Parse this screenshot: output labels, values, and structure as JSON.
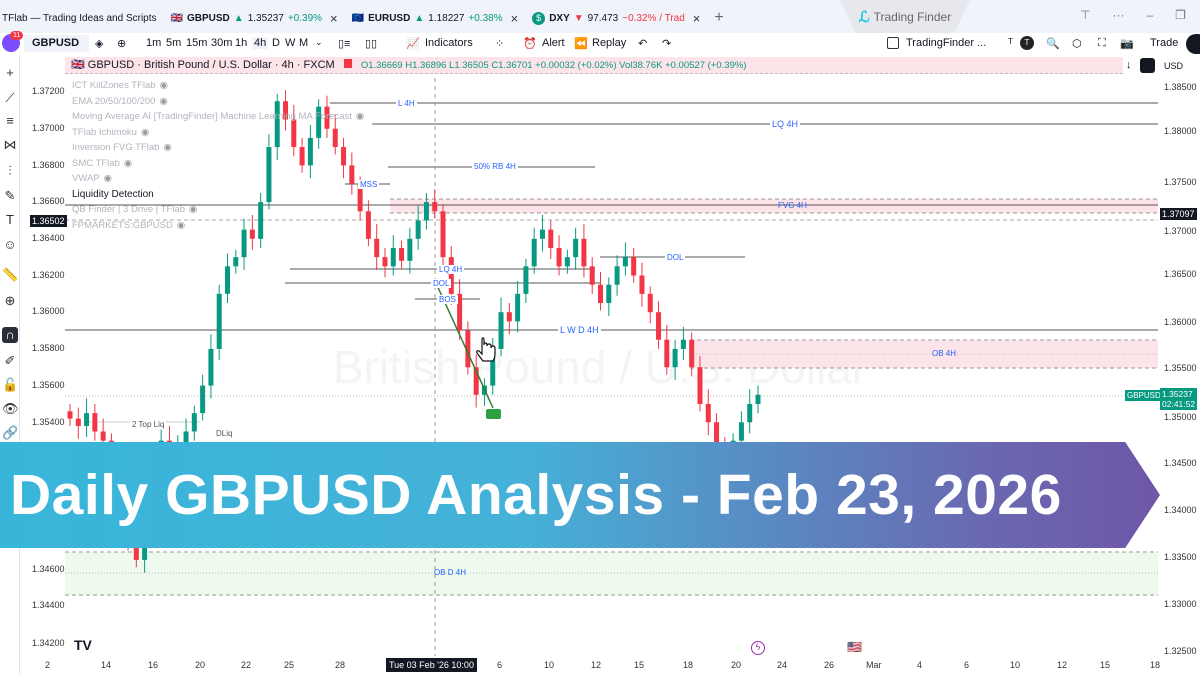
{
  "tabs": [
    {
      "title": "TFlab — Trading Ideas and Scripts"
    },
    {
      "symbol": "GBPUSD",
      "dir": "▲",
      "price": "1.35237",
      "change": "+0.39%"
    },
    {
      "symbol": "EURUSD",
      "dir": "▲",
      "price": "1.18227",
      "change": "+0.38%"
    },
    {
      "symbol": "DXY",
      "dir": "▼",
      "price": "97.473",
      "change": "−0.32% / Trad"
    }
  ],
  "brand": "Trading Finder",
  "toolbar": {
    "notif": "11",
    "symbol": "GBPUSD",
    "intervals": [
      "1m",
      "5m",
      "15m",
      "30m",
      "1h",
      "4h",
      "D",
      "W",
      "M"
    ],
    "active_interval": "4h",
    "indicators": "Indicators",
    "alert": "Alert",
    "replay": "Replay",
    "layout": "TradingFinder ...",
    "trade": "Trade",
    "t_label": "T",
    "avatar": "T"
  },
  "legend": {
    "title": "GBPUSD · British Pound / U.S. Dollar · 4h · FXCM",
    "ohlc": "O1.36669 H1.36896 L1.36505 C1.36701 +0.00032 (+0.02%) Vol38.76K +0.00527 (+0.39%)",
    "currency": "USD"
  },
  "indicators": [
    "ICT KillZones TFlab",
    "EMA 20/50/100/200",
    "Moving Average AI [TradingFinder] Machine Learning MA Forecast",
    "TFlab Ichimoku",
    "Inversion FVG TFlab",
    "SMC TFlab",
    "VWAP",
    "Liquidity Detection",
    "QB Finder | 3 Drive | TFlab",
    "FPMARKETS:GBPUSD"
  ],
  "left_axis": [
    "1.37200",
    "1.37000",
    "1.36800",
    "1.36600",
    "1.36400",
    "1.36200",
    "1.36000",
    "1.35800",
    "1.35600",
    "1.35400",
    "1.34600",
    "1.34400",
    "1.34200"
  ],
  "left_crosshair_price": "1.36502",
  "right_axis": [
    "1.38500",
    "1.38000",
    "1.37500",
    "1.37000",
    "1.36500",
    "1.36000",
    "1.35500",
    "1.35000",
    "1.34500",
    "1.34000",
    "1.33500",
    "1.33000",
    "1.32500"
  ],
  "right_marker_price": "1.37097",
  "current": {
    "symbol": "GBPUSD",
    "price": "1.35237",
    "countdown": "02:41:52"
  },
  "annotations": {
    "l4h": "L 4H",
    "lq4h": "LQ 4H",
    "rb": "50% RB 4H",
    "mss": "MSS",
    "fvg": "FVG 4H",
    "lq4h2": "LQ 4H",
    "dol": "DOL",
    "bos": "BOS",
    "dol2": "DOL",
    "lwd": "L W D 4H",
    "ob4h": "OB 4H",
    "top_liq": "2 Top Liq",
    "dliq": "DLiq",
    "obd": "OB D 4H"
  },
  "watermark": "British Pound / U.S. Dollar",
  "time_axis": [
    "2",
    "14",
    "16",
    "20",
    "22",
    "25",
    "28",
    "6",
    "10",
    "12",
    "15",
    "18",
    "20",
    "24",
    "26",
    "Mar",
    "4",
    "6",
    "10",
    "12",
    "15",
    "18"
  ],
  "crosshair_time": "Tue 03 Feb '26  10:00",
  "banner": "Daily GBPUSD Analysis - Feb 23, 2026",
  "price_path": [
    1.3542,
    1.3538,
    1.3545,
    1.3535,
    1.353,
    1.352,
    1.35,
    1.3475,
    1.3465,
    1.349,
    1.352,
    1.353,
    1.3525,
    1.3528,
    1.3535,
    1.3545,
    1.356,
    1.358,
    1.361,
    1.3625,
    1.363,
    1.3645,
    1.364,
    1.366,
    1.369,
    1.3715,
    1.3705,
    1.369,
    1.368,
    1.3695,
    1.3712,
    1.37,
    1.369,
    1.368,
    1.367,
    1.3655,
    1.364,
    1.363,
    1.3625,
    1.3635,
    1.3628,
    1.364,
    1.365,
    1.366,
    1.3655,
    1.363,
    1.361,
    1.359,
    1.357,
    1.3555,
    1.356,
    1.358,
    1.36,
    1.3595,
    1.361,
    1.3625,
    1.364,
    1.3645,
    1.3635,
    1.3625,
    1.363,
    1.364,
    1.3625,
    1.3615,
    1.3605,
    1.3615,
    1.3625,
    1.363,
    1.362,
    1.361,
    1.36,
    1.3585,
    1.357,
    1.358,
    1.3585,
    1.357,
    1.355,
    1.354,
    1.3525,
    1.352,
    1.353,
    1.354,
    1.355,
    1.3555
  ],
  "colors": {
    "up": "#089981",
    "down": "#f23645",
    "banner_start": "#38b6da",
    "banner_end": "#6e56a8",
    "fvg_zone": "#fde4e8",
    "ob_d_zone": "#e8f8e8"
  }
}
